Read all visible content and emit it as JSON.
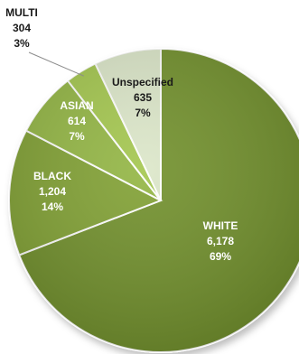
{
  "chart_data": {
    "type": "pie",
    "title": "",
    "slices": [
      {
        "label": "WHITE",
        "value": 6178,
        "value_text": "6,178",
        "percent_text": "69%",
        "color": "#6f8f2b",
        "label_color": "#ffffff"
      },
      {
        "label": "BLACK",
        "value": 1204,
        "value_text": "1,204",
        "percent_text": "14%",
        "color": "#80a032",
        "label_color": "#ffffff"
      },
      {
        "label": "ASIAN",
        "value": 614,
        "value_text": "614",
        "percent_text": "7%",
        "color": "#92b542",
        "label_color": "#ffffff"
      },
      {
        "label": "MULTI",
        "value": 304,
        "value_text": "304",
        "percent_text": "3%",
        "color": "#a3c64e",
        "label_color": "#1a1a1a"
      },
      {
        "label": "Unspecified",
        "value": 635,
        "value_text": "635",
        "percent_text": "7%",
        "color": "#dbe6c8",
        "label_color": "#1a1a1a"
      }
    ],
    "legend": "none",
    "start": "12 o'clock",
    "direction": "clockwise"
  }
}
